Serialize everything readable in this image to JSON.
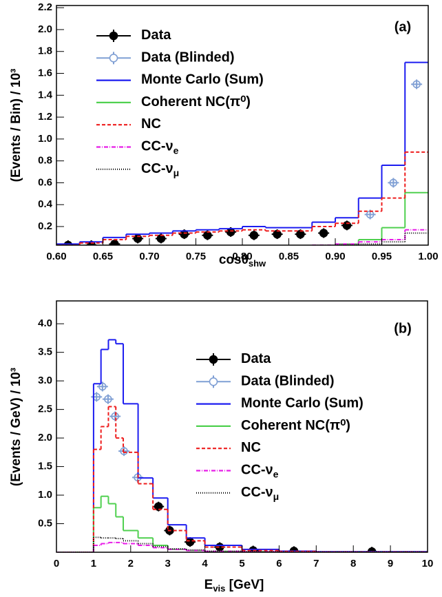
{
  "chart_data": [
    {
      "type": "histogram",
      "annotation": "(a)",
      "x_label": {
        "text": "cosθ",
        "sub": "shw"
      },
      "y_label": "(Events / Bin) / 10³",
      "xlim": [
        0.6,
        1.0
      ],
      "xticks": [
        {
          "value": 0.6,
          "label": "0.60"
        },
        0.65,
        {
          "value": 0.7,
          "label": "0.70"
        },
        0.75,
        {
          "value": 0.8,
          "label": "0.80"
        },
        0.85,
        {
          "value": 0.9,
          "label": "0.90"
        },
        0.95,
        {
          "value": 1,
          "label": "1.00"
        }
      ],
      "ylim": [
        0.03,
        2.22
      ],
      "yticks": [
        0.2,
        0.4,
        0.6,
        0.8,
        {
          "value": 1,
          "label": "1.0"
        },
        1.2,
        1.4,
        1.6,
        1.8,
        {
          "value": 2,
          "label": "2.0"
        },
        2.2
      ],
      "bins": [
        0.6,
        0.625,
        0.65,
        0.675,
        0.7,
        0.725,
        0.75,
        0.775,
        0.8,
        0.825,
        0.85,
        0.875,
        0.9,
        0.925,
        0.95,
        0.975,
        1.0
      ],
      "series": [
        {
          "name": "Data",
          "color": "#000000",
          "marker": "filled",
          "x": [
            0.6125,
            0.6375,
            0.6625,
            0.6875,
            0.7125,
            0.7375,
            0.7625,
            0.7875,
            0.8125,
            0.8375,
            0.8625,
            0.8875,
            0.9125
          ],
          "values": [
            0.03,
            0.03,
            0.04,
            0.09,
            0.09,
            0.13,
            0.12,
            0.15,
            0.12,
            0.13,
            0.13,
            0.14,
            0.21
          ]
        },
        {
          "name": "Data (Blinded)",
          "color": "#7f9fd4",
          "marker": "open",
          "x": [
            0.9375,
            0.9625,
            0.9875
          ],
          "values": [
            0.31,
            0.6,
            1.5
          ]
        },
        {
          "name": "Monte Carlo (Sum)",
          "color": "#1c1cf0",
          "dash": "none",
          "values": [
            0.04,
            0.06,
            0.1,
            0.13,
            0.14,
            0.16,
            0.17,
            0.18,
            0.2,
            0.19,
            0.19,
            0.24,
            0.28,
            0.46,
            0.76,
            1.7
          ]
        },
        {
          "name": "Coherent NC(π⁰)",
          "color": "#4fd04f",
          "dash": "none",
          "values": [
            0.01,
            0.01,
            0.01,
            0.01,
            0.01,
            0.01,
            0.01,
            0.01,
            0.01,
            0.01,
            0.01,
            0.02,
            0.04,
            0.08,
            0.19,
            0.51
          ]
        },
        {
          "name": "NC",
          "color": "#ee1c1c",
          "dash": "5,3",
          "values": [
            0.03,
            0.05,
            0.08,
            0.11,
            0.12,
            0.14,
            0.15,
            0.16,
            0.17,
            0.16,
            0.16,
            0.2,
            0.23,
            0.34,
            0.46,
            0.88
          ]
        },
        {
          "name": "CC-ν",
          "name_sub": "e",
          "color": "#e81ce8",
          "dash": "6,2,1,2",
          "values": [
            0.01,
            0.01,
            0.01,
            0.01,
            0.01,
            0.01,
            0.01,
            0.02,
            0.02,
            0.02,
            0.02,
            0.03,
            0.04,
            0.06,
            0.08,
            0.17
          ]
        },
        {
          "name": "CC-ν",
          "name_sub": "μ",
          "color": "#000000",
          "dash": "1,2",
          "values": [
            0.01,
            0.01,
            0.01,
            0.01,
            0.01,
            0.01,
            0.01,
            0.02,
            0.02,
            0.02,
            0.02,
            0.02,
            0.03,
            0.04,
            0.06,
            0.14
          ]
        }
      ]
    },
    {
      "type": "histogram",
      "annotation": "(b)",
      "x_label": {
        "text": "E",
        "sub": "vis",
        "after": " [GeV]"
      },
      "y_label": "(Events / GeV) / 10³",
      "xlim": [
        0,
        10
      ],
      "xticks": [
        0,
        1,
        2,
        3,
        4,
        5,
        6,
        7,
        8,
        9,
        10
      ],
      "ylim": [
        0,
        4.4
      ],
      "yticks": [
        0.5,
        {
          "value": 1,
          "label": "1.0"
        },
        1.5,
        {
          "value": 2,
          "label": "2.0"
        },
        2.5,
        {
          "value": 3,
          "label": "3.0"
        },
        3.5,
        {
          "value": 4,
          "label": "4.0"
        }
      ],
      "bins": [
        0,
        1.0,
        1.2,
        1.4,
        1.6,
        1.8,
        2.2,
        2.6,
        3.0,
        3.5,
        4.0,
        5.0,
        6.0,
        7.0,
        10.0
      ],
      "series": [
        {
          "name": "Data",
          "color": "#000000",
          "marker": "filled",
          "x": [
            2.75,
            3.05,
            3.6,
            4.4,
            5.3,
            6.4,
            8.5
          ],
          "values": [
            0.8,
            0.38,
            0.18,
            0.09,
            0.03,
            0.02,
            0.01
          ]
        },
        {
          "name": "Data (Blinded)",
          "color": "#7f9fd4",
          "marker": "open",
          "x": [
            1.08,
            1.24,
            1.39,
            1.58,
            1.82,
            2.19
          ],
          "values": [
            2.72,
            2.9,
            2.68,
            2.38,
            1.77,
            1.31
          ]
        },
        {
          "name": "Monte Carlo (Sum)",
          "color": "#1c1cf0",
          "dash": "none",
          "values": [
            0,
            2.95,
            3.55,
            3.72,
            3.65,
            2.6,
            1.3,
            0.95,
            0.48,
            0.25,
            0.12,
            0.05,
            0.02,
            0.01
          ]
        },
        {
          "name": "Coherent NC(π⁰)",
          "color": "#4fd04f",
          "dash": "none",
          "values": [
            0,
            0.78,
            0.98,
            0.85,
            0.62,
            0.38,
            0.25,
            0.12,
            0.05,
            0.03,
            0.01,
            0.005,
            0.003,
            0.001
          ]
        },
        {
          "name": "NC",
          "color": "#ee1c1c",
          "dash": "5,3",
          "values": [
            0,
            1.8,
            2.2,
            2.55,
            2.0,
            1.75,
            1.2,
            0.75,
            0.38,
            0.2,
            0.09,
            0.03,
            0.015,
            0.005
          ]
        },
        {
          "name": "CC-ν",
          "name_sub": "e",
          "color": "#e81ce8",
          "dash": "6,2,1,2",
          "values": [
            0,
            0.12,
            0.15,
            0.17,
            0.17,
            0.15,
            0.12,
            0.08,
            0.05,
            0.03,
            0.015,
            0.008,
            0.004,
            0.002
          ]
        },
        {
          "name": "CC-ν",
          "name_sub": "μ",
          "color": "#000000",
          "dash": "1,2",
          "values": [
            0,
            0.26,
            0.25,
            0.25,
            0.24,
            0.2,
            0.15,
            0.1,
            0.06,
            0.04,
            0.02,
            0.01,
            0.005,
            0.003
          ]
        }
      ]
    }
  ]
}
